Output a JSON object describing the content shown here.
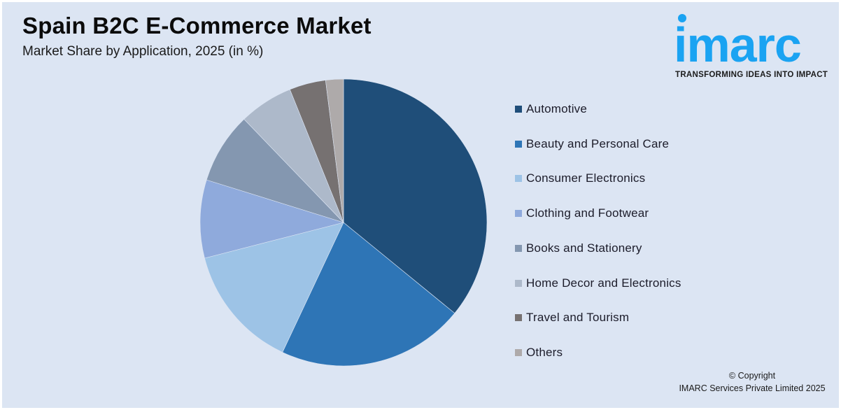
{
  "header": {
    "title": "Spain B2C E-Commerce Market",
    "subtitle": "Market Share by Application, 2025 (in %)"
  },
  "logo": {
    "wordmark": "imarc",
    "tagline": "TRANSFORMING IDEAS INTO IMPACT",
    "color": "#1aa3f2"
  },
  "legend": {
    "items": [
      {
        "label": "Automotive",
        "color": "#1f4e79"
      },
      {
        "label": "Beauty and Personal Care",
        "color": "#2e75b6"
      },
      {
        "label": "Consumer Electronics",
        "color": "#9dc3e6"
      },
      {
        "label": "Clothing and Footwear",
        "color": "#8faadc"
      },
      {
        "label": "Books and Stationery",
        "color": "#8497b0"
      },
      {
        "label": "Home Decor and Electronics",
        "color": "#adb9ca"
      },
      {
        "label": "Travel and Tourism",
        "color": "#767171"
      },
      {
        "label": "Others",
        "color": "#aeaaaa"
      }
    ]
  },
  "footer": {
    "copyright_line1": "© Copyright",
    "copyright_line2": "IMARC Services Private Limited 2025"
  },
  "chart_data": {
    "type": "pie",
    "title": "Spain B2C E-Commerce Market",
    "subtitle": "Market Share by Application, 2025 (in %)",
    "categories": [
      "Automotive",
      "Beauty and Personal Care",
      "Consumer Electronics",
      "Clothing and Footwear",
      "Books and Stationery",
      "Home Decor and Electronics",
      "Travel and Tourism",
      "Others"
    ],
    "values": [
      35.9,
      21.1,
      14.0,
      8.8,
      8.0,
      6.1,
      4.1,
      2.0
    ],
    "colors": [
      "#1f4e79",
      "#2e75b6",
      "#9dc3e6",
      "#8faadc",
      "#8497b0",
      "#adb9ca",
      "#767171",
      "#aeaaaa"
    ],
    "start_angle": "12 o'clock",
    "direction": "clockwise",
    "data_labels": false,
    "legend_position": "right"
  }
}
